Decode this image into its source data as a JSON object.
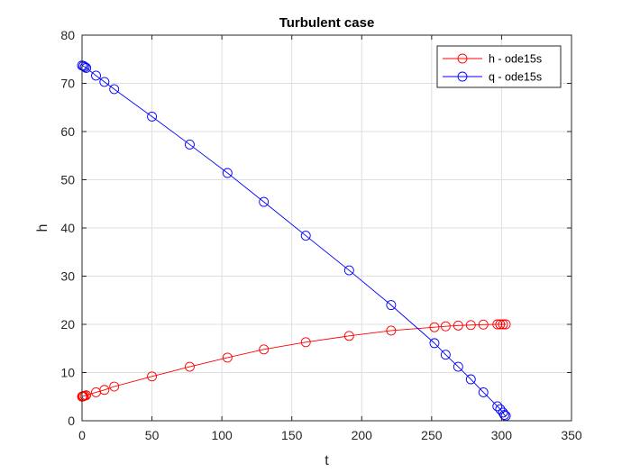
{
  "chart_data": {
    "type": "line",
    "title": "Turbulent case",
    "xlabel": "t",
    "ylabel": "h",
    "xlim": [
      0,
      350
    ],
    "ylim": [
      0,
      80
    ],
    "xticks": [
      0,
      50,
      100,
      150,
      200,
      250,
      300,
      350
    ],
    "yticks": [
      0,
      10,
      20,
      30,
      40,
      50,
      60,
      70,
      80
    ],
    "grid": true,
    "legend_position": "top-right",
    "series": [
      {
        "name": "h - ode15s",
        "color": "#ff0000",
        "marker": "circle",
        "x": [
          0,
          0.5,
          1,
          2,
          3,
          10,
          16,
          23,
          50,
          77,
          104,
          130,
          160,
          191,
          221,
          252,
          260,
          269,
          278,
          287,
          297,
          299,
          301,
          303
        ],
        "y": [
          5,
          5.05,
          5.1,
          5.2,
          5.3,
          5.9,
          6.4,
          7.1,
          9.2,
          11.2,
          13.1,
          14.8,
          16.3,
          17.6,
          18.7,
          19.4,
          19.6,
          19.75,
          19.85,
          19.95,
          20,
          20,
          20,
          20
        ]
      },
      {
        "name": "q - ode15s",
        "color": "#0000ff",
        "marker": "circle",
        "x": [
          0,
          1,
          2,
          3,
          10,
          16,
          23,
          50,
          77,
          104,
          130,
          160,
          191,
          221,
          252,
          260,
          269,
          278,
          287,
          297,
          299,
          301,
          302,
          303
        ],
        "y": [
          73.7,
          73.6,
          73.4,
          73.2,
          71.6,
          70.3,
          68.8,
          63.1,
          57.3,
          51.4,
          45.4,
          38.4,
          31.2,
          24,
          16.1,
          13.7,
          11.2,
          8.6,
          5.9,
          3,
          2.4,
          1.7,
          1.2,
          1
        ]
      }
    ]
  }
}
